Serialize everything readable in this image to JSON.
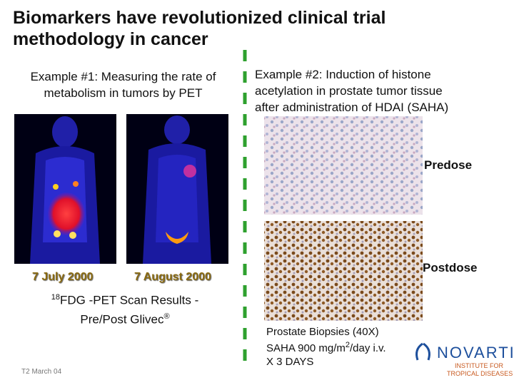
{
  "title": [
    "Biomarkers have revolutionized clinical trial",
    "methodology in cancer"
  ],
  "left": {
    "heading": [
      "Example #1: Measuring the rate of",
      "metabolism in tumors by PET"
    ],
    "image_labels": [
      "7 July 2000",
      "7 August 2000"
    ],
    "caption": {
      "line1": {
        "sup": "18",
        "text": "FDG -PET Scan Results -"
      },
      "line2": {
        "text": "Pre/Post Glivec",
        "sup": "®"
      }
    }
  },
  "right": {
    "heading": [
      "Example #2: Induction of histone",
      "acetylation in prostate tumor tissue",
      "after administration of HDAI (SAHA)"
    ],
    "image_labels": [
      "Predose",
      "Postdose"
    ],
    "caption": {
      "line1": "Prostate Biopsies (40X)",
      "line2": {
        "text": "SAHA 900 mg/m",
        "sup": "2",
        "rest": "/day i.v."
      },
      "line3": "X 3 DAYS"
    }
  },
  "footer": "T2 March 04",
  "logo": {
    "name": "NOVARTIS",
    "line1": "INSTITUTE FOR",
    "line2": "TROPICAL DISEASES"
  }
}
